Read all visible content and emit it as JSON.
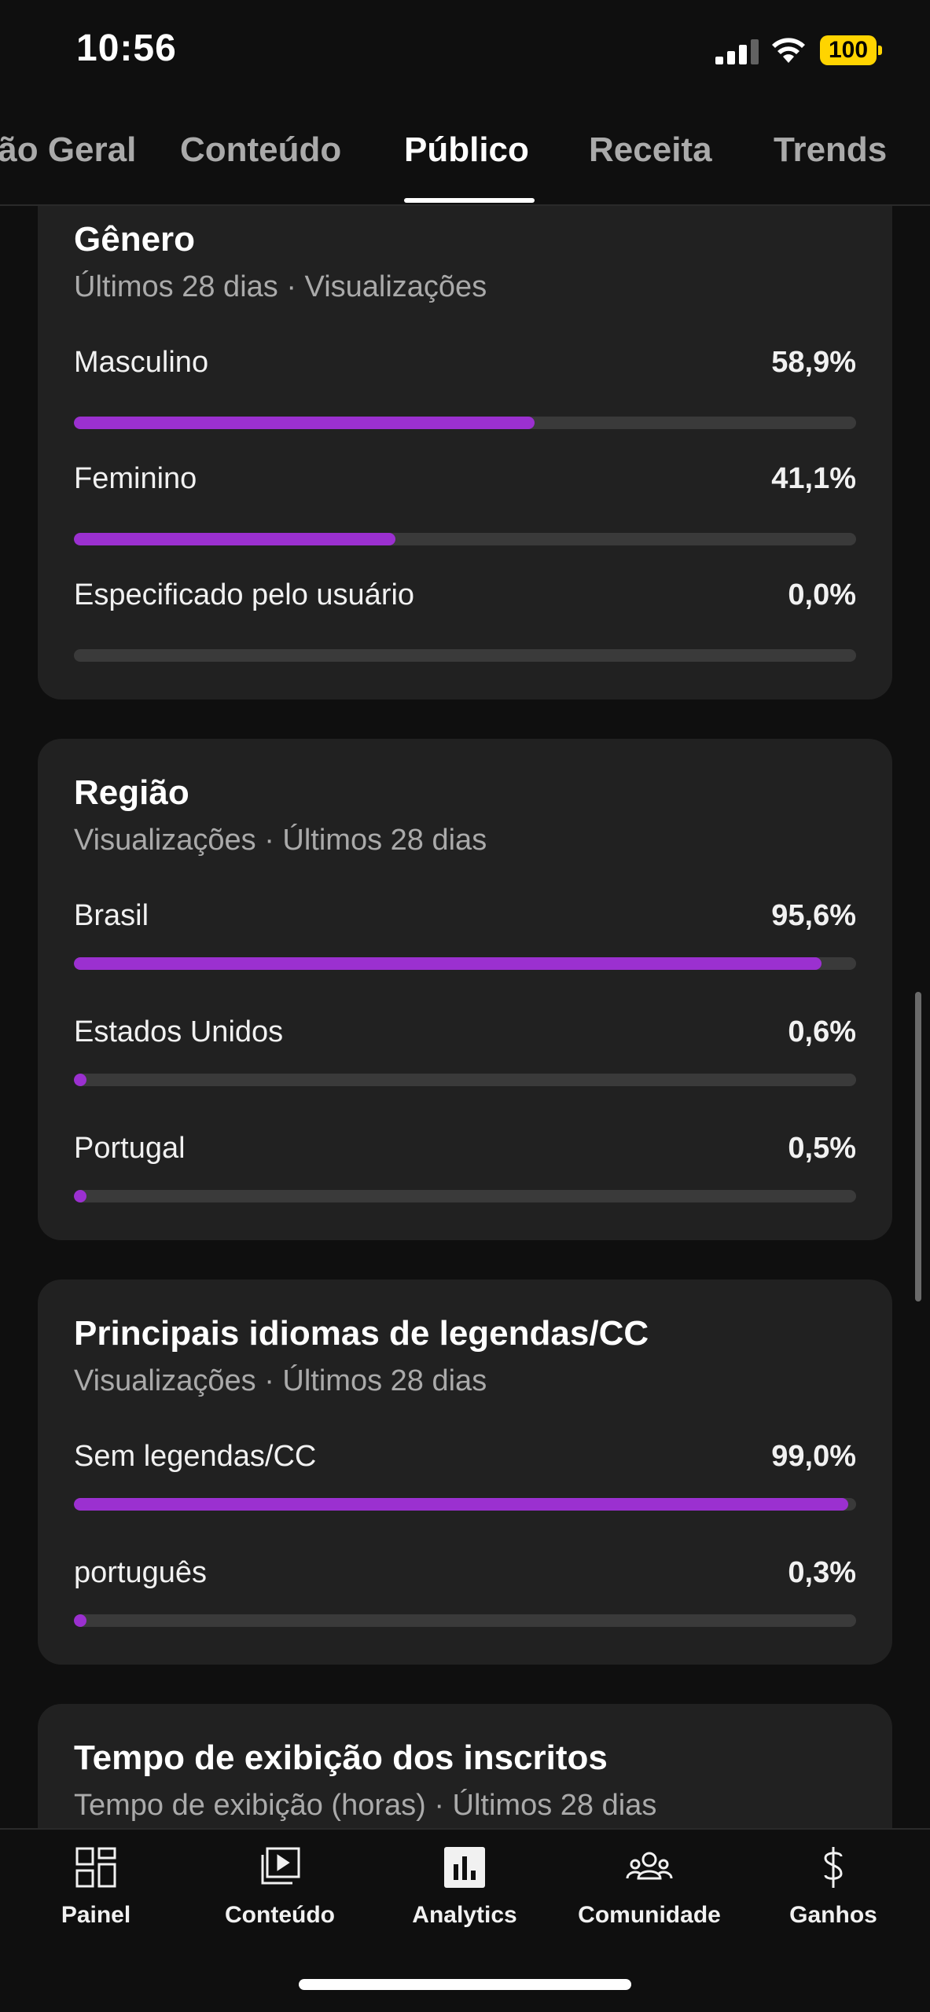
{
  "status_bar": {
    "time": "10:56",
    "battery": "100"
  },
  "tabs": [
    {
      "label": "Visão Geral",
      "active": false
    },
    {
      "label": "Conteúdo",
      "active": false
    },
    {
      "label": "Público",
      "active": true
    },
    {
      "label": "Receita",
      "active": false
    },
    {
      "label": "Trends",
      "active": false
    }
  ],
  "cards": {
    "gender": {
      "title": "Gênero",
      "subtitle": "Últimos 28 dias · Visualizações",
      "rows": [
        {
          "label": "Masculino",
          "value": "58,9%",
          "fraction": 0.589
        },
        {
          "label": "Feminino",
          "value": "41,1%",
          "fraction": 0.411
        },
        {
          "label": "Especificado pelo usuário",
          "value": "0,0%",
          "fraction": 0.0
        }
      ]
    },
    "region": {
      "title": "Região",
      "subtitle": "Visualizações · Últimos 28 dias",
      "rows": [
        {
          "label": "Brasil",
          "value": "95,6%",
          "fraction": 0.956
        },
        {
          "label": "Estados Unidos",
          "value": "0,6%",
          "fraction": 0.006
        },
        {
          "label": "Portugal",
          "value": "0,5%",
          "fraction": 0.005
        }
      ]
    },
    "subtitles": {
      "title": "Principais idiomas de legendas/CC",
      "subtitle": "Visualizações · Últimos 28 dias",
      "rows": [
        {
          "label": "Sem legendas/CC",
          "value": "99,0%",
          "fraction": 0.99
        },
        {
          "label": "português",
          "value": "0,3%",
          "fraction": 0.003
        }
      ]
    },
    "watch_time": {
      "title": "Tempo de exibição dos inscritos",
      "subtitle": "Tempo de exibição (horas) · Últimos 28 dias"
    }
  },
  "bottom_nav": [
    {
      "label": "Painel",
      "icon": "dashboard-icon"
    },
    {
      "label": "Conteúdo",
      "icon": "content-icon"
    },
    {
      "label": "Analytics",
      "icon": "analytics-icon",
      "active": true
    },
    {
      "label": "Comunidade",
      "icon": "community-icon"
    },
    {
      "label": "Ganhos",
      "icon": "dollar-icon"
    }
  ],
  "colors": {
    "accent": "#9b30d0",
    "battery": "#ffd400",
    "card": "#212121",
    "background": "#0f0f0f"
  }
}
